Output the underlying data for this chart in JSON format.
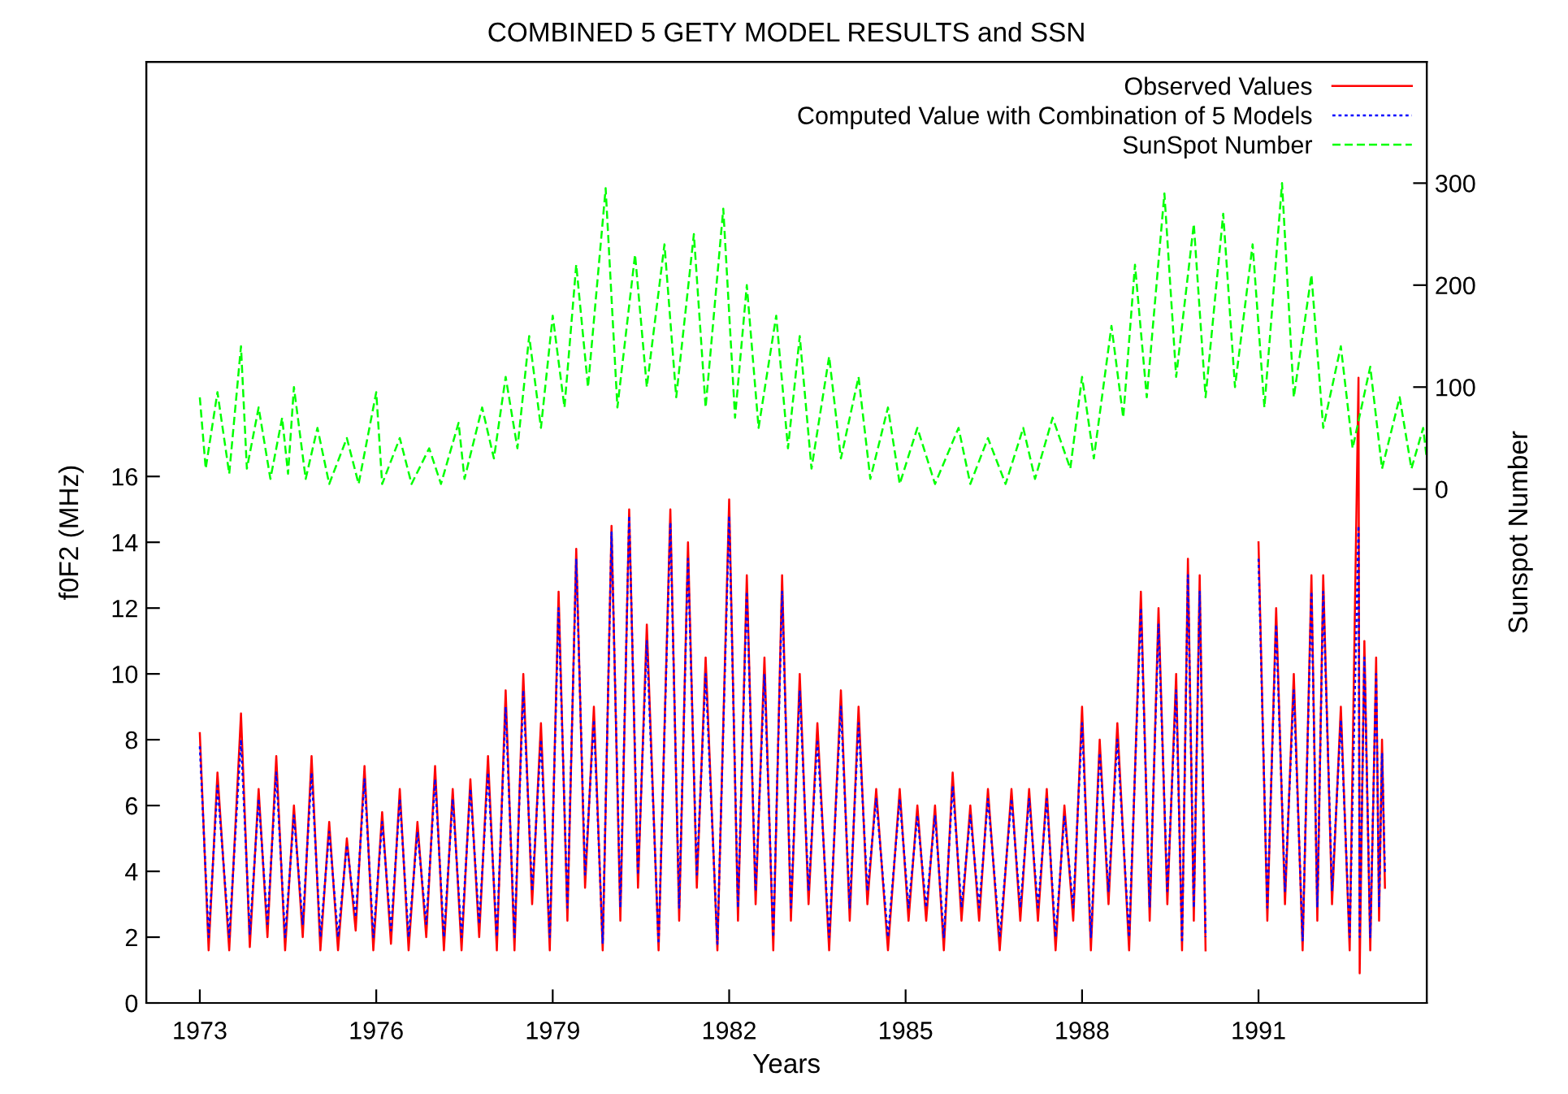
{
  "chart_data": {
    "type": "line",
    "title": "COMBINED 5 GETY MODEL RESULTS and SSN",
    "xlabel": "Years",
    "ylabel": "f0F2 (MHz)",
    "y2label": "Sunspot Number",
    "x": [
      1973.0,
      1973.15,
      1973.3,
      1973.5,
      1973.7,
      1973.85,
      1974.0,
      1974.15,
      1974.3,
      1974.45,
      1974.6,
      1974.75,
      1974.9,
      1975.05,
      1975.2,
      1975.35,
      1975.5,
      1975.65,
      1975.8,
      1975.95,
      1976.1,
      1976.25,
      1976.4,
      1976.55,
      1976.7,
      1976.85,
      1977.0,
      1977.15,
      1977.3,
      1977.45,
      1977.6,
      1977.75,
      1977.9,
      1978.05,
      1978.2,
      1978.35,
      1978.5,
      1978.65,
      1978.8,
      1978.95,
      1979.1,
      1979.25,
      1979.4,
      1979.55,
      1979.7,
      1979.85,
      1980.0,
      1980.15,
      1980.3,
      1980.45,
      1980.6,
      1980.8,
      1981.0,
      1981.15,
      1981.3,
      1981.45,
      1981.6,
      1981.8,
      1982.0,
      1982.15,
      1982.3,
      1982.45,
      1982.6,
      1982.75,
      1982.9,
      1983.05,
      1983.2,
      1983.35,
      1983.5,
      1983.7,
      1983.9,
      1984.05,
      1984.2,
      1984.35,
      1984.5,
      1984.7,
      1984.9,
      1985.05,
      1985.2,
      1985.35,
      1985.5,
      1985.65,
      1985.8,
      1985.95,
      1986.1,
      1986.25,
      1986.4,
      1986.6,
      1986.8,
      1986.95,
      1987.1,
      1987.25,
      1987.4,
      1987.55,
      1987.7,
      1987.85,
      1988.0,
      1988.15,
      1988.3,
      1988.45,
      1988.6,
      1988.8,
      1989.0,
      1989.15,
      1989.3,
      1989.45,
      1989.6,
      1989.7,
      1989.8,
      1989.9,
      1990.0,
      1990.1,
      1990.5,
      1991.0,
      1991.15,
      1991.3,
      1991.45,
      1991.6,
      1991.75,
      1991.9,
      1992.0,
      1992.1,
      1992.25,
      1992.4,
      1992.55,
      1992.7,
      1992.72,
      1992.8,
      1992.9,
      1993.0,
      1993.05,
      1993.1,
      1993.15
    ],
    "series": [
      {
        "name": "Observed Values",
        "color": "#ff0000",
        "line_style": "solid",
        "values": [
          8.2,
          1.6,
          7.0,
          1.6,
          8.8,
          1.7,
          6.5,
          2.0,
          7.5,
          1.6,
          6.0,
          2.0,
          7.5,
          1.6,
          5.5,
          1.6,
          5.0,
          2.2,
          7.2,
          1.6,
          5.8,
          1.8,
          6.5,
          1.6,
          5.5,
          2.0,
          7.2,
          1.6,
          6.5,
          1.6,
          6.8,
          2.0,
          7.5,
          1.6,
          9.5,
          1.6,
          10.0,
          3.0,
          8.5,
          1.6,
          12.5,
          2.5,
          13.8,
          3.5,
          9.0,
          1.6,
          14.5,
          2.5,
          15.0,
          3.5,
          11.5,
          1.6,
          15.0,
          2.5,
          14.0,
          3.5,
          10.5,
          1.6,
          15.3,
          2.5,
          13.0,
          3.0,
          10.5,
          1.6,
          13.0,
          2.5,
          10.0,
          3.0,
          8.5,
          1.6,
          9.5,
          2.5,
          9.0,
          3.0,
          6.5,
          1.6,
          6.5,
          2.5,
          6.0,
          2.5,
          6.0,
          1.6,
          7.0,
          2.5,
          6.0,
          2.5,
          6.5,
          1.6,
          6.5,
          2.5,
          6.5,
          2.5,
          6.5,
          1.6,
          6.0,
          2.5,
          9.0,
          1.6,
          8.0,
          3.0,
          8.5,
          1.6,
          12.5,
          2.5,
          12.0,
          3.0,
          10.0,
          1.6,
          13.5,
          2.5,
          13.0,
          1.6,
          null,
          14.0,
          2.5,
          12.0,
          3.0,
          10.0,
          1.6,
          13.0,
          2.5,
          13.0,
          3.0,
          9.0,
          1.6,
          19.0,
          0.9,
          11.0,
          1.6,
          10.5,
          2.5,
          8.0,
          3.5
        ]
      },
      {
        "name": "Computed Value with Combination of 5 Models",
        "color": "#0000ff",
        "line_style": "dotted",
        "values": [
          7.8,
          2.0,
          6.6,
          2.0,
          8.0,
          2.1,
          6.2,
          2.4,
          7.0,
          2.0,
          5.7,
          2.4,
          7.0,
          2.0,
          5.2,
          2.0,
          4.8,
          2.6,
          6.8,
          2.0,
          5.5,
          2.2,
          6.2,
          2.0,
          5.2,
          2.4,
          6.8,
          2.0,
          6.2,
          2.0,
          6.5,
          2.4,
          7.0,
          2.0,
          9.0,
          2.0,
          9.5,
          3.4,
          8.0,
          2.0,
          12.0,
          2.9,
          13.5,
          3.9,
          8.6,
          1.8,
          14.3,
          2.9,
          14.8,
          3.9,
          11.0,
          1.8,
          14.6,
          2.9,
          13.5,
          3.9,
          10.0,
          1.8,
          14.8,
          2.9,
          12.5,
          3.4,
          10.0,
          2.0,
          12.5,
          2.9,
          9.5,
          3.4,
          8.0,
          2.0,
          9.0,
          2.9,
          8.5,
          3.4,
          6.2,
          2.0,
          6.2,
          2.9,
          5.7,
          2.9,
          5.7,
          2.0,
          6.6,
          2.9,
          5.7,
          2.9,
          6.2,
          2.0,
          6.2,
          2.9,
          6.2,
          2.9,
          6.2,
          2.0,
          5.7,
          2.9,
          8.5,
          2.0,
          7.6,
          3.4,
          8.0,
          2.0,
          12.0,
          2.9,
          11.5,
          3.4,
          9.5,
          1.9,
          13.0,
          2.9,
          12.5,
          2.0,
          null,
          13.5,
          2.9,
          11.5,
          3.4,
          9.5,
          1.9,
          12.5,
          2.9,
          12.5,
          3.4,
          8.6,
          2.0,
          14.5,
          2.0,
          10.5,
          2.0,
          10.0,
          2.9,
          7.6,
          3.9
        ]
      },
      {
        "name": "SunSpot Number",
        "color": "#00ff00",
        "line_style": "dashed",
        "axis": "y2",
        "x": [
          1973.0,
          1973.1,
          1973.3,
          1973.5,
          1973.7,
          1973.8,
          1974.0,
          1974.2,
          1974.4,
          1974.5,
          1974.6,
          1974.8,
          1975.0,
          1975.2,
          1975.5,
          1975.7,
          1976.0,
          1976.1,
          1976.4,
          1976.6,
          1976.9,
          1977.1,
          1977.4,
          1977.5,
          1977.8,
          1978.0,
          1978.2,
          1978.4,
          1978.6,
          1978.8,
          1979.0,
          1979.2,
          1979.4,
          1979.6,
          1979.9,
          1980.1,
          1980.4,
          1980.6,
          1980.9,
          1981.1,
          1981.4,
          1981.6,
          1981.9,
          1982.1,
          1982.3,
          1982.5,
          1982.8,
          1983.0,
          1983.2,
          1983.4,
          1983.7,
          1983.9,
          1984.2,
          1984.4,
          1984.7,
          1984.9,
          1985.2,
          1985.5,
          1985.9,
          1986.1,
          1986.4,
          1986.7,
          1987.0,
          1987.2,
          1987.5,
          1987.8,
          1988.0,
          1988.2,
          1988.5,
          1988.7,
          1988.9,
          1989.1,
          1989.4,
          1989.6,
          1989.9,
          1990.1,
          1990.4,
          1990.6,
          1990.9,
          1991.1,
          1991.4,
          1991.6,
          1991.9,
          1992.1,
          1992.4,
          1992.6,
          1992.9,
          1993.1,
          1993.4,
          1993.6,
          1993.8,
          1993.86
        ],
        "values": [
          90,
          20,
          95,
          15,
          140,
          20,
          80,
          10,
          70,
          15,
          100,
          10,
          60,
          5,
          50,
          5,
          95,
          5,
          50,
          5,
          40,
          5,
          65,
          10,
          80,
          30,
          110,
          40,
          150,
          60,
          170,
          80,
          220,
          100,
          295,
          80,
          230,
          100,
          240,
          90,
          250,
          80,
          275,
          70,
          200,
          60,
          170,
          40,
          150,
          20,
          130,
          30,
          110,
          10,
          80,
          5,
          60,
          5,
          60,
          5,
          50,
          5,
          60,
          10,
          70,
          20,
          110,
          30,
          160,
          70,
          220,
          90,
          290,
          110,
          260,
          90,
          270,
          100,
          240,
          80,
          300,
          90,
          210,
          60,
          140,
          40,
          120,
          20,
          90,
          20,
          60,
          30
        ]
      }
    ],
    "xlim": [
      1972.09,
      1993.86
    ],
    "xticks": [
      1973,
      1976,
      1979,
      1982,
      1985,
      1988,
      1991
    ],
    "ylim": [
      0,
      28.6
    ],
    "yticks": [
      0,
      2,
      4,
      6,
      8,
      10,
      12,
      14,
      16
    ],
    "y2lim": [
      -504,
      419
    ],
    "y2ticks": [
      0,
      100,
      200,
      300
    ],
    "legend": "top right",
    "grid": false
  }
}
